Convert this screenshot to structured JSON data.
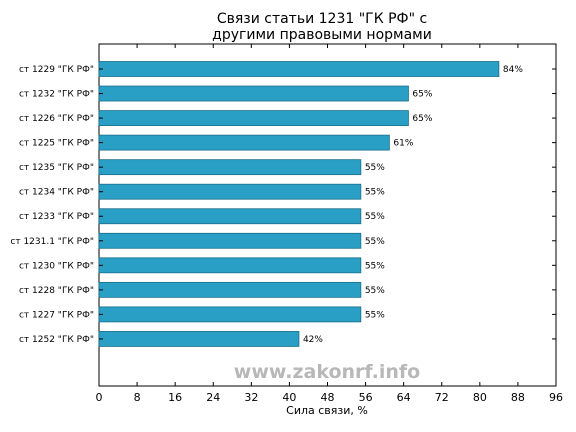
{
  "chart_data": {
    "type": "bar",
    "orientation": "horizontal",
    "title_lines": [
      "Связи статьи 1231 \"ГК РФ\" с",
      "другими правовыми нормами"
    ],
    "xlabel": "Сила связи, %",
    "ylabel": "",
    "categories": [
      "ст 1229 \"ГК РФ\"",
      "ст 1232 \"ГК РФ\"",
      "ст 1226 \"ГК РФ\"",
      "ст 1225 \"ГК РФ\"",
      "ст 1235 \"ГК РФ\"",
      "ст 1234 \"ГК РФ\"",
      "ст 1233 \"ГК РФ\"",
      "ст 1231.1 \"ГК РФ\"",
      "ст 1230 \"ГК РФ\"",
      "ст 1228 \"ГК РФ\"",
      "ст 1227 \"ГК РФ\"",
      "ст 1252 \"ГК РФ\""
    ],
    "values": [
      84,
      65,
      65,
      61,
      55,
      55,
      55,
      55,
      55,
      55,
      55,
      42
    ],
    "value_labels": [
      "84%",
      "65%",
      "65%",
      "61%",
      "55%",
      "55%",
      "55%",
      "55%",
      "55%",
      "55%",
      "55%",
      "42%"
    ],
    "xlim": [
      0,
      96
    ],
    "xticks": [
      0,
      8,
      16,
      24,
      32,
      40,
      48,
      56,
      64,
      72,
      80,
      88,
      96
    ],
    "bar_color": "#2a9fc6",
    "bar_edge_color": "#1a6e8c",
    "grid": false,
    "watermark": "www.zakonrf.info"
  }
}
